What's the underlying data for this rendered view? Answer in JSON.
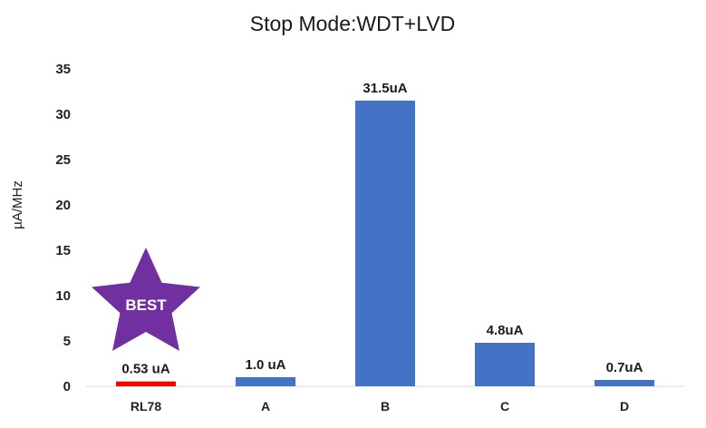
{
  "chart_data": {
    "type": "bar",
    "title": "Stop Mode:WDT+LVD",
    "xlabel": "",
    "ylabel": "µA/MHz",
    "categories": [
      "RL78",
      "A",
      "B",
      "C",
      "D"
    ],
    "values": [
      0.53,
      1.0,
      31.5,
      4.8,
      0.7
    ],
    "data_labels": [
      "0.53 uA",
      "1.0 uA",
      "31.5uA",
      "4.8uA",
      "0.7uA"
    ],
    "ylim": [
      0,
      35
    ],
    "yticks": [
      0,
      5,
      10,
      15,
      20,
      25,
      30,
      35
    ],
    "grid": false,
    "legend": "none",
    "colors": {
      "bar": "#4472c4",
      "highlight_bar": "#ff0000",
      "badge": "#7030a0"
    },
    "highlight_index": 0
  },
  "badge": {
    "label": "BEST",
    "icon": "star-icon"
  }
}
